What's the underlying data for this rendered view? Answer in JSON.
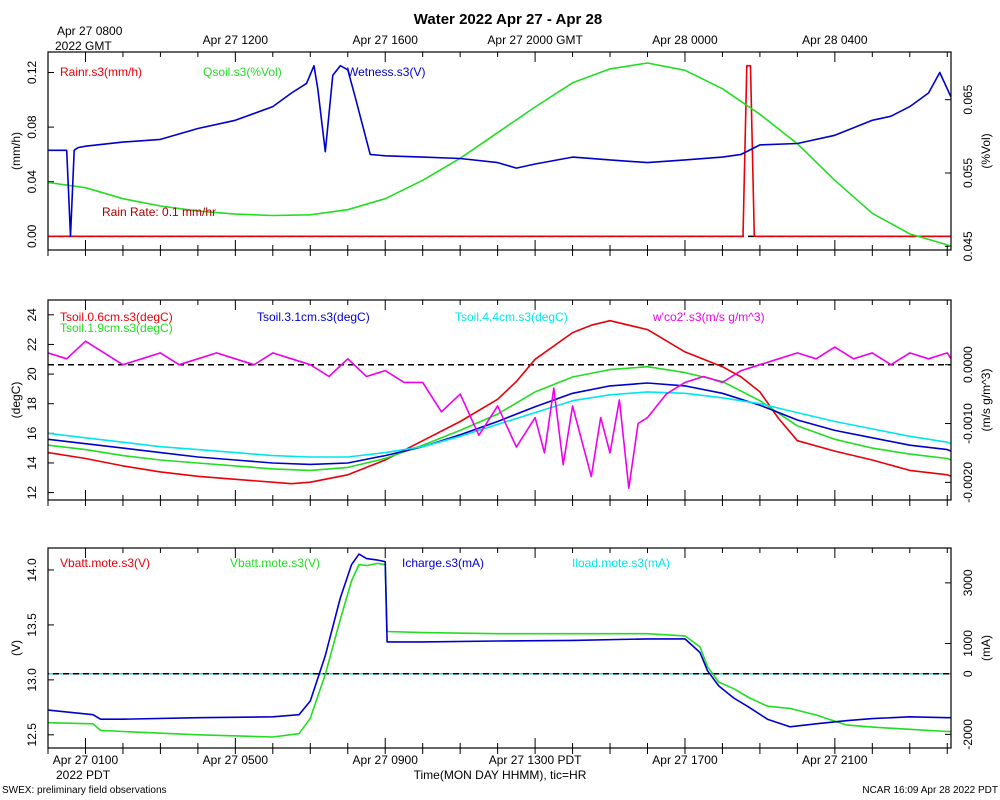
{
  "title": "Water 2022 Apr 27 - Apr 28",
  "top_axis": {
    "first_label_line1": "Apr 27 0800",
    "first_label_line2": "2022 GMT",
    "labels": [
      "Apr 27 1200",
      "Apr 27 1600",
      "Apr 27 2000 GMT",
      "Apr 28 0000",
      "Apr 28 0400"
    ]
  },
  "bottom_axis": {
    "labels": [
      "Apr 27 0100",
      "Apr 27 0500",
      "Apr 27 0900",
      "Apr 27 1300 PDT",
      "Apr 27 1700",
      "Apr 27 2100"
    ],
    "year_label": "2022 PDT",
    "title": "Time(MON DAY HHMM), tic=HR"
  },
  "footer": {
    "left": "SWEX: preliminary field observations",
    "right": "NCAR 16:09 Apr 28 2022 PDT"
  },
  "colors": {
    "red": "#e8000b",
    "green": "#22dd22",
    "blue": "#0000cc",
    "cyan": "#00e5ee",
    "magenta": "#ee00ee",
    "dark_red": "#aa0000"
  },
  "chart_data": [
    {
      "type": "line",
      "panel": "water",
      "x_unit": "hours since Apr 27 0000 PDT",
      "xlim": [
        0,
        24.1
      ],
      "ylabel_left": "(mm/h)",
      "ylabel_right": "(%Vol)",
      "ylim_left": [
        -0.01,
        0.135
      ],
      "yticks_left": [
        0.0,
        0.04,
        0.08,
        0.12
      ],
      "ytick_labels_left": [
        "0.00",
        "0.04",
        "0.08",
        "0.12"
      ],
      "ylim_right": [
        0.0445,
        0.0715
      ],
      "yticks_right": [
        0.045,
        0.055,
        0.065
      ],
      "ytick_labels_right": [
        "0.045",
        "0.055",
        "0.065"
      ],
      "reference_line": {
        "value": 0.0,
        "axis": "left",
        "style": "dashed"
      },
      "annotation": "Rain Rate: 0.1 mm/hr",
      "series": [
        {
          "name": "Rainr.s3(mm/h)",
          "color_key": "red",
          "axis": "left",
          "x": [
            0,
            18.55,
            18.65,
            18.75,
            18.85,
            24.1
          ],
          "y": [
            0,
            0,
            0.125,
            0.125,
            0,
            0
          ]
        },
        {
          "name": "Qsoil.s3(%Vol)",
          "color_key": "green",
          "axis": "right",
          "x": [
            0,
            1,
            2,
            3,
            4,
            5,
            6,
            7,
            8,
            9,
            10,
            11,
            12,
            13,
            14,
            15,
            16,
            17,
            18,
            19,
            20,
            21,
            22,
            23,
            24,
            24.1
          ],
          "y": [
            0.0537,
            0.053,
            0.0515,
            0.0505,
            0.0498,
            0.0494,
            0.0492,
            0.0493,
            0.05,
            0.0515,
            0.054,
            0.057,
            0.0605,
            0.064,
            0.0673,
            0.0692,
            0.07,
            0.069,
            0.0665,
            0.063,
            0.059,
            0.054,
            0.0495,
            0.0467,
            0.0452,
            0.045
          ]
        },
        {
          "name": "Wetness.s3(V)",
          "color_key": "blue",
          "axis": "left",
          "x": [
            0,
            0.5,
            0.6,
            0.7,
            0.8,
            1,
            2,
            3,
            4,
            5,
            6,
            6.5,
            6.9,
            7.1,
            7.2,
            7.4,
            7.6,
            7.8,
            8,
            8.2,
            8.6,
            9,
            10,
            11,
            12,
            12.5,
            13,
            14,
            15,
            16,
            17,
            18,
            18.5,
            19,
            20,
            21,
            22,
            22.5,
            23,
            23.5,
            23.8,
            24.1
          ],
          "y": [
            0.063,
            0.063,
            0.0,
            0.063,
            0.065,
            0.066,
            0.069,
            0.071,
            0.079,
            0.085,
            0.095,
            0.105,
            0.112,
            0.125,
            0.108,
            0.062,
            0.118,
            0.125,
            0.122,
            0.102,
            0.06,
            0.059,
            0.058,
            0.057,
            0.054,
            0.05,
            0.053,
            0.058,
            0.056,
            0.054,
            0.056,
            0.058,
            0.06,
            0.067,
            0.068,
            0.074,
            0.085,
            0.088,
            0.095,
            0.105,
            0.12,
            0.102
          ]
        }
      ]
    },
    {
      "type": "line",
      "panel": "soil temperature",
      "x_unit": "hours since Apr 27 0000 PDT",
      "xlim": [
        0,
        24.1
      ],
      "ylabel_left": "(degC)",
      "ylabel_right": "(m/s g/m^3)",
      "ylim_left": [
        11.5,
        25
      ],
      "yticks_left": [
        12,
        14,
        16,
        18,
        20,
        22,
        24
      ],
      "ytick_labels_left": [
        "12",
        "14",
        "16",
        "18",
        "20",
        "22",
        "24"
      ],
      "ylim_right": [
        -0.0023,
        0.0011
      ],
      "yticks_right": [
        -0.002,
        -0.001,
        0.0
      ],
      "ytick_labels_right": [
        "-0.0020",
        "-0.0010",
        "0.0000"
      ],
      "reference_line": {
        "value": 0.0,
        "axis": "right",
        "style": "dashed"
      },
      "series": [
        {
          "name": "Tsoil.0.6cm.s3(degC)",
          "color_key": "red",
          "axis": "left",
          "x": [
            0,
            1,
            2,
            3,
            4,
            5,
            6,
            6.5,
            7,
            8,
            9,
            10,
            11,
            12,
            12.5,
            13,
            14,
            14.5,
            15,
            16,
            17,
            18,
            18.5,
            19,
            19.5,
            20,
            21,
            22,
            23,
            24,
            24.1
          ],
          "y": [
            14.7,
            14.3,
            13.8,
            13.4,
            13.1,
            12.9,
            12.7,
            12.6,
            12.7,
            13.2,
            14.2,
            15.5,
            16.8,
            18.3,
            19.5,
            21.0,
            22.8,
            23.3,
            23.6,
            23.0,
            21.5,
            20.5,
            19.8,
            18.8,
            17.0,
            15.5,
            14.8,
            14.2,
            13.5,
            13.2,
            13.1
          ]
        },
        {
          "name": "Tsoil.1.9cm.s3(degC)",
          "color_key": "green",
          "axis": "left",
          "x": [
            0,
            1,
            2,
            3,
            4,
            5,
            6,
            7,
            8,
            9,
            10,
            11,
            12,
            13,
            14,
            15,
            16,
            17,
            18,
            19,
            20,
            21,
            22,
            23,
            24,
            24.1
          ],
          "y": [
            15.2,
            14.9,
            14.5,
            14.2,
            14.0,
            13.8,
            13.6,
            13.5,
            13.7,
            14.3,
            15.2,
            16.2,
            17.3,
            18.8,
            19.8,
            20.3,
            20.5,
            20.1,
            19.5,
            18.2,
            16.5,
            15.6,
            15.0,
            14.6,
            14.3,
            14.2
          ]
        },
        {
          "name": "Tsoil.3.1cm.s3(degC)",
          "color_key": "blue",
          "axis": "left",
          "x": [
            0,
            1,
            2,
            3,
            4,
            5,
            6,
            7,
            8,
            9,
            10,
            11,
            12,
            13,
            14,
            15,
            16,
            17,
            18,
            19,
            20,
            21,
            22,
            23,
            24,
            24.1
          ],
          "y": [
            15.6,
            15.3,
            15.0,
            14.7,
            14.4,
            14.2,
            14.0,
            13.9,
            14.0,
            14.5,
            15.1,
            15.9,
            16.8,
            17.8,
            18.7,
            19.2,
            19.4,
            19.2,
            18.7,
            17.9,
            16.9,
            16.2,
            15.7,
            15.2,
            14.9,
            14.8
          ]
        },
        {
          "name": "Tsoil.4.4cm.s3(degC)",
          "color_key": "cyan",
          "axis": "left",
          "x": [
            0,
            1,
            2,
            3,
            4,
            5,
            6,
            7,
            8,
            9,
            10,
            11,
            12,
            13,
            14,
            15,
            16,
            17,
            18,
            19,
            20,
            21,
            22,
            23,
            24,
            24.1
          ],
          "y": [
            16.0,
            15.7,
            15.4,
            15.1,
            14.9,
            14.7,
            14.5,
            14.4,
            14.4,
            14.7,
            15.1,
            15.8,
            16.6,
            17.4,
            18.2,
            18.6,
            18.8,
            18.7,
            18.4,
            18.0,
            17.4,
            16.8,
            16.3,
            15.8,
            15.4,
            15.3
          ]
        },
        {
          "name": "w'co2'.s3(m/s g/m^3)",
          "color_key": "magenta",
          "axis": "right",
          "x": [
            0,
            0.5,
            1,
            1.5,
            2,
            2.5,
            3,
            3.5,
            4,
            4.5,
            5,
            5.5,
            6,
            6.5,
            7,
            7.5,
            8,
            8.5,
            9,
            9.5,
            10,
            10.5,
            11,
            11.5,
            12,
            12.5,
            13,
            13.25,
            13.5,
            13.75,
            14,
            14.25,
            14.5,
            14.75,
            15,
            15.25,
            15.5,
            15.75,
            16,
            16.5,
            17,
            17.5,
            18,
            18.5,
            19,
            19.5,
            20,
            20.5,
            21,
            21.5,
            22,
            22.5,
            23,
            23.5,
            24,
            24.1
          ],
          "y": [
            0.0002,
            0.0001,
            0.0004,
            0.0002,
            0.0,
            0.0001,
            0.0002,
            0.0,
            0.0001,
            0.0002,
            0.0001,
            0.0,
            0.0002,
            0.0001,
            0.0,
            -0.0002,
            0.0001,
            -0.0002,
            -0.0001,
            -0.0003,
            -0.0003,
            -0.0008,
            -0.0005,
            -0.0012,
            -0.0007,
            -0.0014,
            -0.0009,
            -0.0015,
            -0.0004,
            -0.0017,
            -0.0007,
            -0.0013,
            -0.0019,
            -0.0009,
            -0.0015,
            -0.0006,
            -0.0021,
            -0.001,
            -0.0009,
            -0.0005,
            -0.0003,
            -0.0002,
            -0.0003,
            -0.0001,
            0.0,
            0.0001,
            0.0002,
            0.0001,
            0.0003,
            0.0001,
            0.0002,
            0.0,
            0.0002,
            0.0001,
            0.0002,
            0.0001
          ]
        }
      ]
    },
    {
      "type": "line",
      "panel": "power",
      "x_unit": "hours since Apr 27 0000 PDT",
      "xlim": [
        0,
        24.1
      ],
      "ylabel_left": "(V)",
      "ylabel_right": "(mA)",
      "ylim_left": [
        12.38,
        14.2
      ],
      "yticks_left": [
        12.5,
        13.0,
        13.5,
        14.0
      ],
      "ytick_labels_left": [
        "12.5",
        "13.0",
        "13.5",
        "14.0"
      ],
      "ylim_right": [
        -2450,
        4150
      ],
      "yticks_right": [
        -2000,
        0,
        1000,
        3000
      ],
      "ytick_labels_right": [
        "-2000",
        "0",
        "1000",
        "3000"
      ],
      "reference_line": {
        "value": 0,
        "axis": "right",
        "style": "dashed"
      },
      "series": [
        {
          "name": "Vbatt.mote.s3(V)",
          "color_key": "red",
          "axis": "left",
          "x": [],
          "y": []
        },
        {
          "name": "Vbatt.mote.s3(V)",
          "color_key": "green",
          "axis": "left",
          "x": [
            0,
            1.2,
            1.4,
            2,
            4,
            6,
            6.7,
            7.0,
            7.4,
            7.8,
            8.1,
            8.3,
            8.5,
            8.8,
            9.0,
            9.05,
            10,
            12,
            14,
            16,
            17,
            17.4,
            17.6,
            17.9,
            18.3,
            18.7,
            19.2,
            19.8,
            20.5,
            21.3,
            22,
            23,
            24,
            24.1
          ],
          "y": [
            12.61,
            12.6,
            12.54,
            12.53,
            12.5,
            12.48,
            12.51,
            12.65,
            13.05,
            13.55,
            13.9,
            14.05,
            14.04,
            14.06,
            14.05,
            13.44,
            13.43,
            13.42,
            13.42,
            13.42,
            13.4,
            13.3,
            13.12,
            12.98,
            12.92,
            12.84,
            12.76,
            12.74,
            12.68,
            12.59,
            12.57,
            12.55,
            12.53,
            12.53
          ]
        },
        {
          "name": "Icharge.s3(mA)",
          "color_key": "blue",
          "axis": "right",
          "x": [
            0,
            1.2,
            1.4,
            2,
            4,
            6,
            6.7,
            7.0,
            7.4,
            7.8,
            8.1,
            8.3,
            8.5,
            8.8,
            9.0,
            9.05,
            10,
            12,
            14,
            16,
            17,
            17.4,
            17.6,
            17.9,
            18.3,
            18.7,
            19.2,
            19.8,
            20.5,
            21.3,
            22,
            23,
            24,
            24.1
          ],
          "y": [
            -1200,
            -1350,
            -1500,
            -1500,
            -1450,
            -1420,
            -1350,
            -900,
            600,
            2500,
            3600,
            3950,
            3800,
            3750,
            3700,
            1050,
            1050,
            1080,
            1100,
            1150,
            1150,
            700,
            100,
            -400,
            -800,
            -1100,
            -1500,
            -1750,
            -1650,
            -1550,
            -1480,
            -1420,
            -1450,
            -1450
          ]
        },
        {
          "name": "Iload.mote.s3(mA)",
          "color_key": "cyan",
          "axis": "right",
          "x": [],
          "y": []
        }
      ]
    }
  ]
}
